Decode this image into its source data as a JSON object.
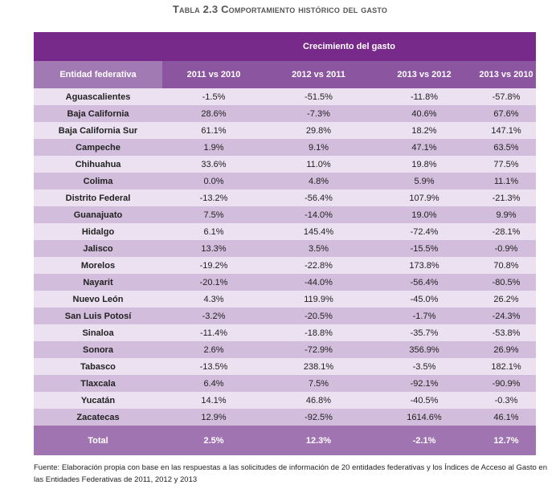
{
  "title": "Tabla 2.3 Comportamiento histórico del gasto",
  "group_header": "Crecimiento del gasto",
  "columns": [
    "Entidad federativa",
    "2011 vs 2010",
    "2012 vs 2011",
    "2013 vs 2012",
    "2013 vs 2010"
  ],
  "rows": [
    [
      "Aguascalientes",
      "-1.5%",
      "-51.5%",
      "-11.8%",
      "-57.8%"
    ],
    [
      "Baja California",
      "28.6%",
      "-7.3%",
      "40.6%",
      "67.6%"
    ],
    [
      "Baja California Sur",
      "61.1%",
      "29.8%",
      "18.2%",
      "147.1%"
    ],
    [
      "Campeche",
      "1.9%",
      "9.1%",
      "47.1%",
      "63.5%"
    ],
    [
      "Chihuahua",
      "33.6%",
      "11.0%",
      "19.8%",
      "77.5%"
    ],
    [
      "Colima",
      "0.0%",
      "4.8%",
      "5.9%",
      "11.1%"
    ],
    [
      "Distrito Federal",
      "-13.2%",
      "-56.4%",
      "107.9%",
      "-21.3%"
    ],
    [
      "Guanajuato",
      "7.5%",
      "-14.0%",
      "19.0%",
      "9.9%"
    ],
    [
      "Hidalgo",
      "6.1%",
      "145.4%",
      "-72.4%",
      "-28.1%"
    ],
    [
      "Jalisco",
      "13.3%",
      "3.5%",
      "-15.5%",
      "-0.9%"
    ],
    [
      "Morelos",
      "-19.2%",
      "-22.8%",
      "173.8%",
      "70.8%"
    ],
    [
      "Nayarit",
      "-20.1%",
      "-44.0%",
      "-56.4%",
      "-80.5%"
    ],
    [
      "Nuevo León",
      "4.3%",
      "119.9%",
      "-45.0%",
      "26.2%"
    ],
    [
      "San Luis Potosí",
      "-3.2%",
      "-20.5%",
      "-1.7%",
      "-24.3%"
    ],
    [
      "Sinaloa",
      "-11.4%",
      "-18.8%",
      "-35.7%",
      "-53.8%"
    ],
    [
      "Sonora",
      "2.6%",
      "-72.9%",
      "356.9%",
      "26.9%"
    ],
    [
      "Tabasco",
      "-13.5%",
      "238.1%",
      "-3.5%",
      "182.1%"
    ],
    [
      "Tlaxcala",
      "6.4%",
      "7.5%",
      "-92.1%",
      "-90.9%"
    ],
    [
      "Yucatán",
      "14.1%",
      "46.8%",
      "-40.5%",
      "-0.3%"
    ],
    [
      "Zacatecas",
      "12.9%",
      "-92.5%",
      "1614.6%",
      "46.1%"
    ]
  ],
  "total": [
    "Total",
    "2.5%",
    "12.3%",
    "-2.1%",
    "12.7%"
  ],
  "footnote": "Fuente: Elaboración propia con base en las respuestas a las solicitudes de información de 20 entidades federativas y los Índices de Acceso al Gasto en las Entidades Federativas de 2011, 2012 y 2013"
}
